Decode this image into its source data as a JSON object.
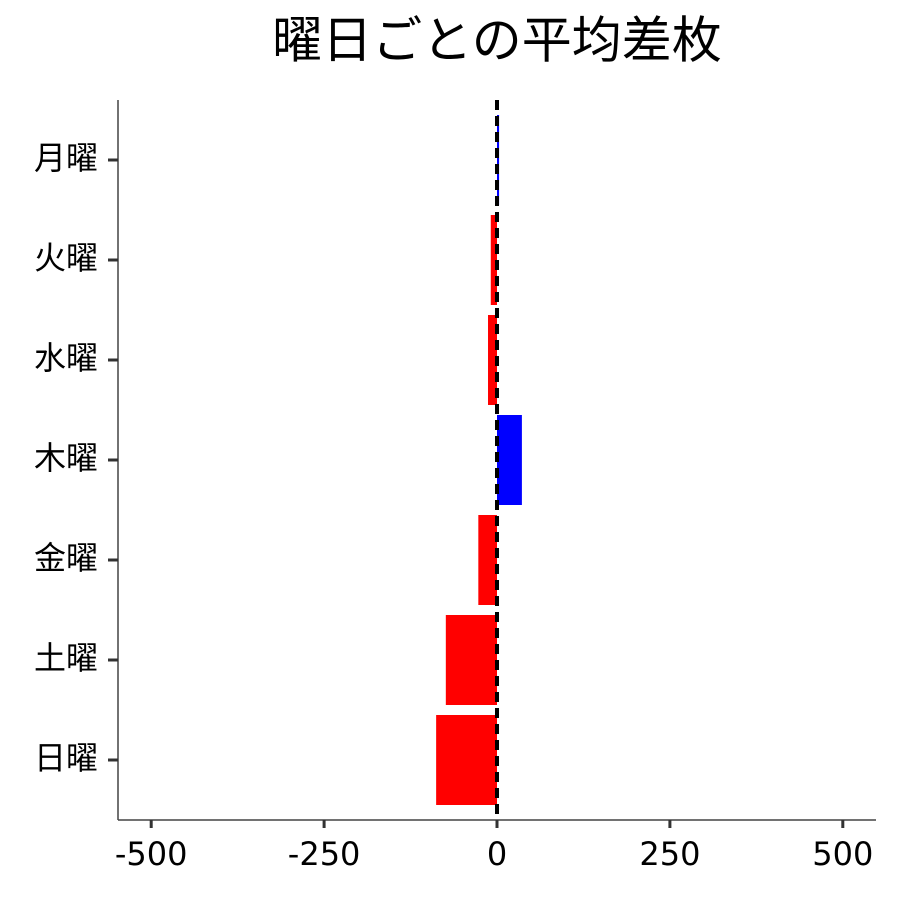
{
  "chart_data": {
    "type": "barh",
    "title": "曜日ごとの平均差枚",
    "categories": [
      "月曜",
      "火曜",
      "水曜",
      "木曜",
      "金曜",
      "土曜",
      "日曜"
    ],
    "values": [
      3,
      -9,
      -13,
      36,
      -27,
      -74,
      -88
    ],
    "colors": [
      "#0000ff",
      "#ff0000",
      "#ff0000",
      "#0000ff",
      "#ff0000",
      "#ff0000",
      "#ff0000"
    ],
    "xlim": [
      -548,
      548
    ],
    "xticks": [
      -500,
      -250,
      0,
      250,
      500
    ],
    "reference_line": 0
  }
}
